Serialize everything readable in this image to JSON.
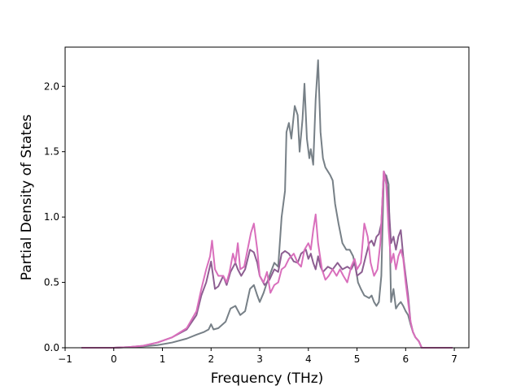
{
  "chart_data": {
    "type": "line",
    "xlabel": "Frequency (THz)",
    "ylabel": "Partial Density of States",
    "xlim": [
      -1.0,
      7.3
    ],
    "ylim": [
      0.0,
      2.3
    ],
    "x_ticks": [
      -1,
      0,
      1,
      2,
      3,
      4,
      5,
      6,
      7
    ],
    "x_tick_labels": [
      "−1",
      "0",
      "1",
      "2",
      "3",
      "4",
      "5",
      "6",
      "7"
    ],
    "y_ticks": [
      0.0,
      0.5,
      1.0,
      1.5,
      2.0
    ],
    "y_tick_labels": [
      "0.0",
      "0.5",
      "1.0",
      "1.5",
      "2.0"
    ],
    "grid": false,
    "legend": "none",
    "series": [
      {
        "color": "#778087",
        "points": [
          [
            -0.65,
            0
          ],
          [
            -0.2,
            0
          ],
          [
            0,
            0
          ],
          [
            0.3,
            0.005
          ],
          [
            0.6,
            0.01
          ],
          [
            0.9,
            0.02
          ],
          [
            1.2,
            0.04
          ],
          [
            1.5,
            0.07
          ],
          [
            1.7,
            0.1
          ],
          [
            1.85,
            0.12
          ],
          [
            1.95,
            0.14
          ],
          [
            2.0,
            0.18
          ],
          [
            2.05,
            0.14
          ],
          [
            2.15,
            0.15
          ],
          [
            2.3,
            0.2
          ],
          [
            2.4,
            0.3
          ],
          [
            2.5,
            0.32
          ],
          [
            2.6,
            0.25
          ],
          [
            2.7,
            0.28
          ],
          [
            2.8,
            0.45
          ],
          [
            2.88,
            0.48
          ],
          [
            2.95,
            0.4
          ],
          [
            3.0,
            0.35
          ],
          [
            3.08,
            0.42
          ],
          [
            3.15,
            0.5
          ],
          [
            3.25,
            0.6
          ],
          [
            3.3,
            0.65
          ],
          [
            3.38,
            0.62
          ],
          [
            3.45,
            1.0
          ],
          [
            3.52,
            1.2
          ],
          [
            3.55,
            1.65
          ],
          [
            3.6,
            1.72
          ],
          [
            3.65,
            1.6
          ],
          [
            3.72,
            1.85
          ],
          [
            3.78,
            1.78
          ],
          [
            3.82,
            1.5
          ],
          [
            3.88,
            1.75
          ],
          [
            3.92,
            2.02
          ],
          [
            3.97,
            1.6
          ],
          [
            4.02,
            1.45
          ],
          [
            4.05,
            1.52
          ],
          [
            4.1,
            1.4
          ],
          [
            4.15,
            1.9
          ],
          [
            4.2,
            2.2
          ],
          [
            4.25,
            1.65
          ],
          [
            4.3,
            1.45
          ],
          [
            4.35,
            1.38
          ],
          [
            4.4,
            1.35
          ],
          [
            4.45,
            1.32
          ],
          [
            4.5,
            1.28
          ],
          [
            4.55,
            1.1
          ],
          [
            4.62,
            0.95
          ],
          [
            4.7,
            0.8
          ],
          [
            4.78,
            0.75
          ],
          [
            4.85,
            0.75
          ],
          [
            4.92,
            0.7
          ],
          [
            4.98,
            0.6
          ],
          [
            5.02,
            0.5
          ],
          [
            5.08,
            0.45
          ],
          [
            5.15,
            0.4
          ],
          [
            5.25,
            0.38
          ],
          [
            5.3,
            0.4
          ],
          [
            5.35,
            0.35
          ],
          [
            5.4,
            0.32
          ],
          [
            5.45,
            0.35
          ],
          [
            5.5,
            0.55
          ],
          [
            5.55,
            1.3
          ],
          [
            5.6,
            1.32
          ],
          [
            5.65,
            1.25
          ],
          [
            5.7,
            0.35
          ],
          [
            5.75,
            0.45
          ],
          [
            5.8,
            0.3
          ],
          [
            5.85,
            0.33
          ],
          [
            5.9,
            0.35
          ],
          [
            5.95,
            0.32
          ],
          [
            6.0,
            0.28
          ],
          [
            6.05,
            0.25
          ],
          [
            6.1,
            0.18
          ],
          [
            6.15,
            0.12
          ],
          [
            6.2,
            0.08
          ],
          [
            6.27,
            0.05
          ],
          [
            6.33,
            0
          ],
          [
            6.5,
            0
          ],
          [
            6.95,
            0
          ]
        ]
      },
      {
        "color": "#8c5e91",
        "points": [
          [
            -0.65,
            0
          ],
          [
            -0.2,
            0
          ],
          [
            0,
            0
          ],
          [
            0.3,
            0.005
          ],
          [
            0.6,
            0.015
          ],
          [
            0.9,
            0.04
          ],
          [
            1.2,
            0.08
          ],
          [
            1.5,
            0.14
          ],
          [
            1.7,
            0.25
          ],
          [
            1.8,
            0.4
          ],
          [
            1.9,
            0.5
          ],
          [
            2.0,
            0.66
          ],
          [
            2.08,
            0.45
          ],
          [
            2.15,
            0.47
          ],
          [
            2.25,
            0.55
          ],
          [
            2.32,
            0.48
          ],
          [
            2.4,
            0.58
          ],
          [
            2.5,
            0.65
          ],
          [
            2.55,
            0.6
          ],
          [
            2.62,
            0.55
          ],
          [
            2.7,
            0.6
          ],
          [
            2.8,
            0.75
          ],
          [
            2.88,
            0.73
          ],
          [
            2.95,
            0.65
          ],
          [
            3.0,
            0.55
          ],
          [
            3.1,
            0.48
          ],
          [
            3.2,
            0.52
          ],
          [
            3.3,
            0.6
          ],
          [
            3.38,
            0.58
          ],
          [
            3.45,
            0.72
          ],
          [
            3.52,
            0.74
          ],
          [
            3.6,
            0.72
          ],
          [
            3.7,
            0.66
          ],
          [
            3.78,
            0.65
          ],
          [
            3.85,
            0.72
          ],
          [
            3.95,
            0.75
          ],
          [
            4.0,
            0.68
          ],
          [
            4.05,
            0.72
          ],
          [
            4.1,
            0.65
          ],
          [
            4.15,
            0.6
          ],
          [
            4.2,
            0.7
          ],
          [
            4.25,
            0.62
          ],
          [
            4.3,
            0.58
          ],
          [
            4.4,
            0.62
          ],
          [
            4.5,
            0.6
          ],
          [
            4.6,
            0.65
          ],
          [
            4.7,
            0.6
          ],
          [
            4.8,
            0.62
          ],
          [
            4.88,
            0.6
          ],
          [
            4.95,
            0.65
          ],
          [
            5.0,
            0.55
          ],
          [
            5.1,
            0.58
          ],
          [
            5.18,
            0.7
          ],
          [
            5.25,
            0.8
          ],
          [
            5.3,
            0.82
          ],
          [
            5.35,
            0.78
          ],
          [
            5.4,
            0.85
          ],
          [
            5.45,
            0.87
          ],
          [
            5.5,
            0.95
          ],
          [
            5.55,
            1.35
          ],
          [
            5.6,
            1.3
          ],
          [
            5.65,
            1.1
          ],
          [
            5.7,
            0.8
          ],
          [
            5.75,
            0.85
          ],
          [
            5.8,
            0.75
          ],
          [
            5.85,
            0.85
          ],
          [
            5.9,
            0.9
          ],
          [
            5.95,
            0.7
          ],
          [
            6.0,
            0.55
          ],
          [
            6.05,
            0.4
          ],
          [
            6.1,
            0.2
          ],
          [
            6.15,
            0.12
          ],
          [
            6.2,
            0.08
          ],
          [
            6.27,
            0.05
          ],
          [
            6.33,
            0
          ],
          [
            6.5,
            0
          ],
          [
            6.95,
            0
          ]
        ]
      },
      {
        "color": "#d96fbc",
        "points": [
          [
            -0.65,
            0
          ],
          [
            -0.2,
            0
          ],
          [
            0,
            0
          ],
          [
            0.3,
            0.005
          ],
          [
            0.6,
            0.015
          ],
          [
            0.9,
            0.04
          ],
          [
            1.2,
            0.08
          ],
          [
            1.5,
            0.15
          ],
          [
            1.7,
            0.28
          ],
          [
            1.8,
            0.45
          ],
          [
            1.9,
            0.6
          ],
          [
            1.98,
            0.7
          ],
          [
            2.02,
            0.82
          ],
          [
            2.08,
            0.6
          ],
          [
            2.15,
            0.55
          ],
          [
            2.25,
            0.55
          ],
          [
            2.32,
            0.5
          ],
          [
            2.38,
            0.58
          ],
          [
            2.45,
            0.72
          ],
          [
            2.5,
            0.65
          ],
          [
            2.55,
            0.8
          ],
          [
            2.6,
            0.6
          ],
          [
            2.68,
            0.62
          ],
          [
            2.75,
            0.75
          ],
          [
            2.82,
            0.88
          ],
          [
            2.88,
            0.95
          ],
          [
            2.95,
            0.75
          ],
          [
            3.0,
            0.55
          ],
          [
            3.08,
            0.5
          ],
          [
            3.15,
            0.58
          ],
          [
            3.22,
            0.42
          ],
          [
            3.3,
            0.48
          ],
          [
            3.38,
            0.5
          ],
          [
            3.45,
            0.6
          ],
          [
            3.52,
            0.62
          ],
          [
            3.6,
            0.68
          ],
          [
            3.7,
            0.72
          ],
          [
            3.78,
            0.65
          ],
          [
            3.85,
            0.62
          ],
          [
            3.92,
            0.75
          ],
          [
            4.0,
            0.8
          ],
          [
            4.05,
            0.75
          ],
          [
            4.1,
            0.9
          ],
          [
            4.15,
            1.02
          ],
          [
            4.2,
            0.8
          ],
          [
            4.28,
            0.6
          ],
          [
            4.35,
            0.52
          ],
          [
            4.42,
            0.55
          ],
          [
            4.5,
            0.6
          ],
          [
            4.58,
            0.55
          ],
          [
            4.65,
            0.6
          ],
          [
            4.72,
            0.55
          ],
          [
            4.8,
            0.5
          ],
          [
            4.88,
            0.62
          ],
          [
            4.95,
            0.68
          ],
          [
            5.0,
            0.6
          ],
          [
            5.08,
            0.65
          ],
          [
            5.15,
            0.95
          ],
          [
            5.22,
            0.85
          ],
          [
            5.28,
            0.65
          ],
          [
            5.35,
            0.55
          ],
          [
            5.42,
            0.6
          ],
          [
            5.48,
            0.8
          ],
          [
            5.55,
            1.35
          ],
          [
            5.6,
            1.25
          ],
          [
            5.65,
            0.9
          ],
          [
            5.7,
            0.65
          ],
          [
            5.75,
            0.72
          ],
          [
            5.8,
            0.6
          ],
          [
            5.85,
            0.7
          ],
          [
            5.9,
            0.75
          ],
          [
            5.95,
            0.68
          ],
          [
            6.0,
            0.5
          ],
          [
            6.05,
            0.35
          ],
          [
            6.1,
            0.2
          ],
          [
            6.15,
            0.12
          ],
          [
            6.2,
            0.08
          ],
          [
            6.27,
            0.05
          ],
          [
            6.33,
            0
          ],
          [
            6.5,
            0
          ],
          [
            6.95,
            0
          ]
        ]
      }
    ]
  }
}
